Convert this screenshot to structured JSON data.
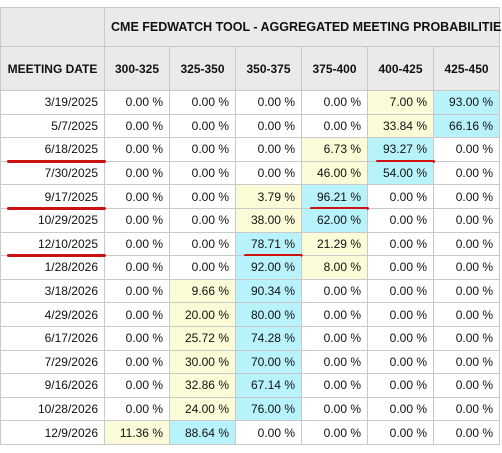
{
  "title": "CME FEDWATCH TOOL - AGGREGATED MEETING PROBABILITIES",
  "row_header": "MEETING DATE",
  "columns": [
    "300-325",
    "325-350",
    "350-375",
    "375-400",
    "400-425",
    "425-450"
  ],
  "highlight_colors": {
    "low": "#fcfbd7",
    "high": "#b8f3fc",
    "underline": "#cc1111"
  },
  "rows": [
    {
      "date": "3/19/2025",
      "cells": [
        "0.00 %",
        "0.00 %",
        "0.00 %",
        "0.00 %",
        "7.00 %",
        "93.00 %"
      ],
      "bg": [
        "",
        "",
        "",
        "",
        "y",
        "c"
      ],
      "ul": []
    },
    {
      "date": "5/7/2025",
      "cells": [
        "0.00 %",
        "0.00 %",
        "0.00 %",
        "0.00 %",
        "33.84 %",
        "66.16 %"
      ],
      "bg": [
        "",
        "",
        "",
        "",
        "y",
        "c"
      ],
      "ul": []
    },
    {
      "date": "6/18/2025",
      "cells": [
        "0.00 %",
        "0.00 %",
        "0.00 %",
        "6.73 %",
        "93.27 %",
        "0.00 %"
      ],
      "bg": [
        "",
        "",
        "",
        "y",
        "c",
        ""
      ],
      "ul": [
        "date",
        4
      ]
    },
    {
      "date": "7/30/2025",
      "cells": [
        "0.00 %",
        "0.00 %",
        "0.00 %",
        "46.00 %",
        "54.00 %",
        "0.00 %"
      ],
      "bg": [
        "",
        "",
        "",
        "y",
        "c",
        ""
      ],
      "ul": []
    },
    {
      "date": "9/17/2025",
      "cells": [
        "0.00 %",
        "0.00 %",
        "3.79 %",
        "96.21 %",
        "0.00 %",
        "0.00 %"
      ],
      "bg": [
        "",
        "",
        "y",
        "c",
        "",
        ""
      ],
      "ul": [
        "date",
        3
      ]
    },
    {
      "date": "10/29/2025",
      "cells": [
        "0.00 %",
        "0.00 %",
        "38.00 %",
        "62.00 %",
        "0.00 %",
        "0.00 %"
      ],
      "bg": [
        "",
        "",
        "y",
        "c",
        "",
        ""
      ],
      "ul": []
    },
    {
      "date": "12/10/2025",
      "cells": [
        "0.00 %",
        "0.00 %",
        "78.71 %",
        "21.29 %",
        "0.00 %",
        "0.00 %"
      ],
      "bg": [
        "",
        "",
        "c",
        "y",
        "",
        ""
      ],
      "ul": [
        "date",
        2
      ]
    },
    {
      "date": "1/28/2026",
      "cells": [
        "0.00 %",
        "0.00 %",
        "92.00 %",
        "8.00 %",
        "0.00 %",
        "0.00 %"
      ],
      "bg": [
        "",
        "",
        "c",
        "y",
        "",
        ""
      ],
      "ul": []
    },
    {
      "date": "3/18/2026",
      "cells": [
        "0.00 %",
        "9.66 %",
        "90.34 %",
        "0.00 %",
        "0.00 %",
        "0.00 %"
      ],
      "bg": [
        "",
        "y",
        "c",
        "",
        "",
        ""
      ],
      "ul": []
    },
    {
      "date": "4/29/2026",
      "cells": [
        "0.00 %",
        "20.00 %",
        "80.00 %",
        "0.00 %",
        "0.00 %",
        "0.00 %"
      ],
      "bg": [
        "",
        "y",
        "c",
        "",
        "",
        ""
      ],
      "ul": []
    },
    {
      "date": "6/17/2026",
      "cells": [
        "0.00 %",
        "25.72 %",
        "74.28 %",
        "0.00 %",
        "0.00 %",
        "0.00 %"
      ],
      "bg": [
        "",
        "y",
        "c",
        "",
        "",
        ""
      ],
      "ul": []
    },
    {
      "date": "7/29/2026",
      "cells": [
        "0.00 %",
        "30.00 %",
        "70.00 %",
        "0.00 %",
        "0.00 %",
        "0.00 %"
      ],
      "bg": [
        "",
        "y",
        "c",
        "",
        "",
        ""
      ],
      "ul": []
    },
    {
      "date": "9/16/2026",
      "cells": [
        "0.00 %",
        "32.86 %",
        "67.14 %",
        "0.00 %",
        "0.00 %",
        "0.00 %"
      ],
      "bg": [
        "",
        "y",
        "c",
        "",
        "",
        ""
      ],
      "ul": []
    },
    {
      "date": "10/28/2026",
      "cells": [
        "0.00 %",
        "24.00 %",
        "76.00 %",
        "0.00 %",
        "0.00 %",
        "0.00 %"
      ],
      "bg": [
        "",
        "y",
        "c",
        "",
        "",
        ""
      ],
      "ul": []
    },
    {
      "date": "12/9/2026",
      "cells": [
        "11.36 %",
        "88.64 %",
        "0.00 %",
        "0.00 %",
        "0.00 %",
        "0.00 %"
      ],
      "bg": [
        "y",
        "c",
        "",
        "",
        "",
        ""
      ],
      "ul": []
    }
  ]
}
